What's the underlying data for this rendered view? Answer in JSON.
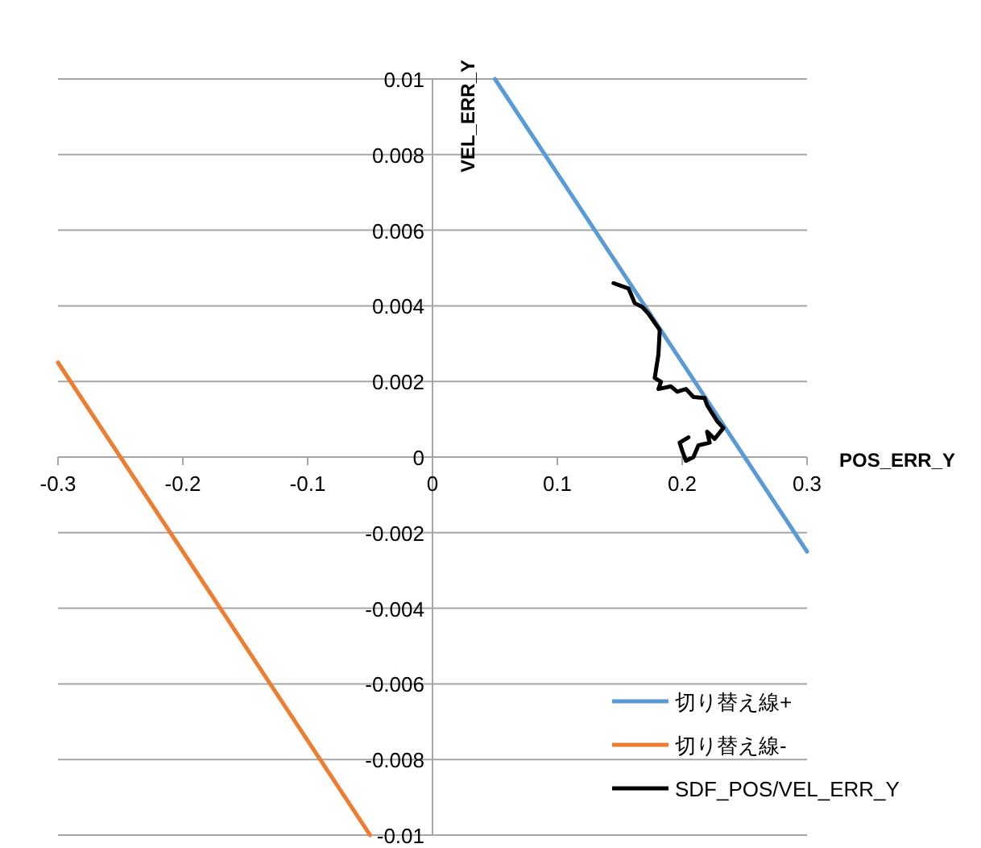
{
  "chart_data": {
    "type": "line",
    "xlabel": "POS_ERR_Y",
    "ylabel": "VEL_ERR_Y",
    "xlim": [
      -0.3,
      0.3
    ],
    "xticks": [
      -0.3,
      -0.2,
      -0.1,
      0,
      0.1,
      0.2,
      0.3
    ],
    "ylim": [
      -0.01,
      0.01
    ],
    "yticks": [
      -0.01,
      -0.008,
      -0.006,
      -0.004,
      -0.002,
      0,
      0.002,
      0.004,
      0.006,
      0.008,
      0.01
    ],
    "grid": "y",
    "legend": "bottom right",
    "line_style": "solid",
    "series": [
      {
        "name": "切り替え線+",
        "color": "#5b9bd5",
        "x": [
          0.05,
          0.3
        ],
        "values": [
          0.01,
          -0.0025
        ]
      },
      {
        "name": "切り替え線-",
        "color": "#ed7d31",
        "x": [
          -0.3,
          -0.05
        ],
        "values": [
          0.0025,
          -0.01
        ]
      },
      {
        "name": "SDF_POS/VEL_ERR_Y",
        "color": "#000000",
        "x": [
          0.145,
          0.157,
          0.162,
          0.168,
          0.173,
          0.182,
          0.181,
          0.178,
          0.183,
          0.181,
          0.191,
          0.196,
          0.203,
          0.209,
          0.218,
          0.22,
          0.224,
          0.228,
          0.233,
          0.226,
          0.22,
          0.222,
          0.213,
          0.209,
          0.203,
          0.2,
          0.198,
          0.205
        ],
        "values": [
          0.0046,
          0.00446,
          0.00407,
          0.00397,
          0.00379,
          0.00336,
          0.00272,
          0.00209,
          0.00199,
          0.0018,
          0.00187,
          0.00173,
          0.0018,
          0.00159,
          0.00156,
          0.00137,
          0.00116,
          0.00095,
          0.00077,
          0.00048,
          0.00067,
          0.00038,
          0.00031,
          0,
          -0.0001,
          0.00017,
          0.00038,
          0.00052
        ]
      }
    ]
  }
}
